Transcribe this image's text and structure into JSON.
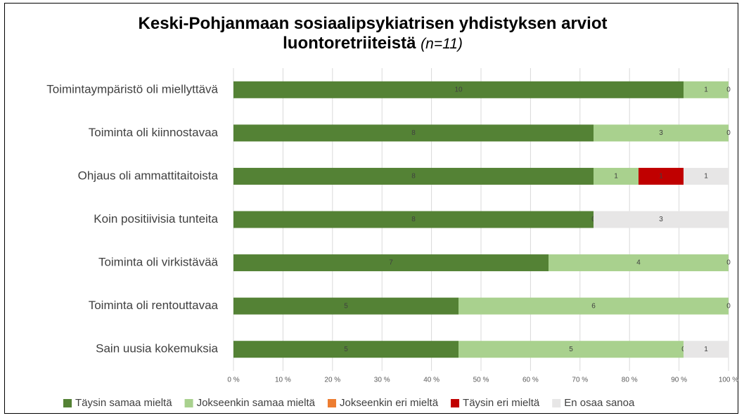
{
  "chart_data": {
    "type": "bar",
    "orientation": "horizontal",
    "stack": "percent",
    "title": "Keski-Pohjanmaan sosiaalipsykiatrisen yhdistyksen arviot luontoretriiteistä",
    "title_note": "(n=11)",
    "categories": [
      "Toimintaympäristö oli miellyttävä",
      "Toiminta oli kiinnostavaa",
      "Ohjaus oli ammattitaitoista",
      "Koin positiivisia tunteita",
      "Toiminta oli virkistävää",
      "Toiminta oli rentouttavaa",
      "Sain uusia kokemuksia"
    ],
    "series": [
      {
        "name": "Täysin samaa mieltä",
        "color": "#548235",
        "values": [
          10,
          8,
          8,
          8,
          7,
          5,
          5
        ]
      },
      {
        "name": "Jokseenkin samaa mieltä",
        "color": "#a9d18e",
        "values": [
          1,
          3,
          1,
          0,
          4,
          6,
          5
        ]
      },
      {
        "name": "Jokseenkin eri mieltä",
        "color": "#ed7d31",
        "values": [
          null,
          null,
          null,
          null,
          null,
          null,
          0
        ]
      },
      {
        "name": "Täysin eri mieltä",
        "color": "#c00000",
        "values": [
          null,
          null,
          1,
          null,
          null,
          null,
          null
        ]
      },
      {
        "name": "En osaa sanoa",
        "color": "#e7e6e6",
        "values": [
          0,
          0,
          1,
          3,
          0,
          0,
          1
        ]
      }
    ],
    "xlim": [
      0,
      100
    ],
    "xticks": [
      {
        "value": 0,
        "label": "0 %"
      },
      {
        "value": 10,
        "label": "10 %"
      },
      {
        "value": 20,
        "label": "20 %"
      },
      {
        "value": 30,
        "label": "30 %"
      },
      {
        "value": 40,
        "label": "40 %"
      },
      {
        "value": 50,
        "label": "50 %"
      },
      {
        "value": 60,
        "label": "60 %"
      },
      {
        "value": 70,
        "label": "70 %"
      },
      {
        "value": 80,
        "label": "80 %"
      },
      {
        "value": 90,
        "label": "90 %"
      },
      {
        "value": 100,
        "label": "100 %"
      }
    ],
    "grid": true,
    "legend": "bottom"
  }
}
